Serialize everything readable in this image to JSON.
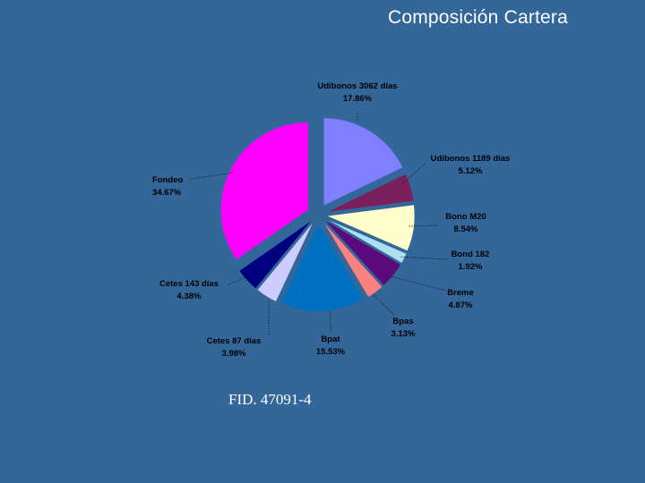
{
  "slide": {
    "title": "Composición Cartera",
    "footer": "FID. 47091-4"
  },
  "colors": {
    "background": "#336699",
    "text": "#ffffff",
    "leader": "#1a1a1a"
  },
  "chart_data": {
    "type": "pie",
    "title": "",
    "exploded": true,
    "slices": [
      {
        "name": "Udibonos 3062 días",
        "value": 17.86,
        "label": "17.86%",
        "color": "#8080ff"
      },
      {
        "name": "Udibonos 1189 días",
        "value": 5.12,
        "label": "5.12%",
        "color": "#7a1f5c"
      },
      {
        "name": "Bono M20",
        "value": 8.54,
        "label": "8.54%",
        "color": "#ffffcc"
      },
      {
        "name": "Bond 182",
        "value": 1.92,
        "label": "1.92%",
        "color": "#aedff0"
      },
      {
        "name": "Breme",
        "value": 4.87,
        "label": "4.87%",
        "color": "#5a0a7a"
      },
      {
        "name": "Bpas",
        "value": 3.13,
        "label": "3.13%",
        "color": "#ff8080"
      },
      {
        "name": "Bpat",
        "value": 15.53,
        "label": "15.53%",
        "color": "#0070c0"
      },
      {
        "name": "Cetes 87 días",
        "value": 3.98,
        "label": "3.98%",
        "color": "#ccccff"
      },
      {
        "name": "Cetes 143 días",
        "value": 4.38,
        "label": "4.38%",
        "color": "#000080"
      },
      {
        "name": "Fondeo",
        "value": 34.67,
        "label": "34.67%",
        "color": "#ff00ff"
      }
    ]
  }
}
